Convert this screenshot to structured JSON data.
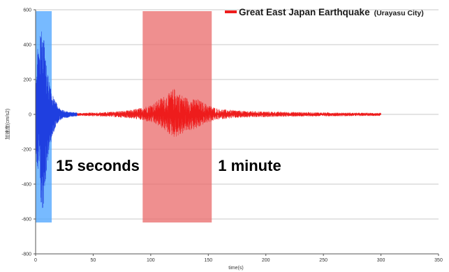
{
  "chart_data": {
    "type": "line",
    "title": "",
    "xlabel": "time(s)",
    "ylabel": "加速度(cm/s2)",
    "xlim": [
      0,
      350
    ],
    "ylim": [
      -800,
      600
    ],
    "x_ticks": [
      0,
      50,
      100,
      150,
      200,
      250,
      300,
      350
    ],
    "y_ticks": [
      600,
      400,
      200,
      0,
      -200,
      -400,
      -600,
      -800
    ],
    "grid": true,
    "legend": {
      "position": "top-right",
      "entries": [
        {
          "label": "Great East Japan Earthquake",
          "sub": "(Urayasu City)",
          "color": "#ee1c1c"
        }
      ]
    },
    "highlights": [
      {
        "x0": 0,
        "x1": 14,
        "color": "#4aa3ff",
        "label": "15 seconds"
      },
      {
        "x0": 93,
        "x1": 153,
        "color": "#ea6a6a",
        "label": "1 minute"
      }
    ],
    "series": [
      {
        "color": "#1f3fe0",
        "envelope": [
          {
            "t": 0,
            "max": 150,
            "min": -200
          },
          {
            "t": 1,
            "max": 220,
            "min": -290
          },
          {
            "t": 2,
            "max": 420,
            "min": -380
          },
          {
            "t": 3,
            "max": 320,
            "min": -300
          },
          {
            "t": 4,
            "max": 460,
            "min": -460
          },
          {
            "t": 5,
            "max": 510,
            "min": -560
          },
          {
            "t": 6,
            "max": 430,
            "min": -590
          },
          {
            "t": 7,
            "max": 470,
            "min": -520
          },
          {
            "t": 8,
            "max": 350,
            "min": -420
          },
          {
            "t": 9,
            "max": 300,
            "min": -360
          },
          {
            "t": 10,
            "max": 260,
            "min": -300
          },
          {
            "t": 11,
            "max": 220,
            "min": -240
          },
          {
            "t": 12,
            "max": 180,
            "min": -200
          },
          {
            "t": 13,
            "max": 150,
            "min": -170
          },
          {
            "t": 14,
            "max": 140,
            "min": -150
          },
          {
            "t": 15,
            "max": 110,
            "min": -120
          },
          {
            "t": 16,
            "max": 90,
            "min": -100
          },
          {
            "t": 17,
            "max": 75,
            "min": -80
          },
          {
            "t": 18,
            "max": 70,
            "min": -60
          },
          {
            "t": 19,
            "max": 50,
            "min": -50
          },
          {
            "t": 20,
            "max": 40,
            "min": -40
          },
          {
            "t": 22,
            "max": 30,
            "min": -30
          },
          {
            "t": 24,
            "max": 24,
            "min": -26
          },
          {
            "t": 26,
            "max": 20,
            "min": -20
          },
          {
            "t": 28,
            "max": 16,
            "min": -18
          },
          {
            "t": 30,
            "max": 14,
            "min": -14
          },
          {
            "t": 33,
            "max": 12,
            "min": -12
          },
          {
            "t": 36,
            "max": 10,
            "min": -10
          }
        ]
      },
      {
        "color": "#ee1c1c",
        "envelope": [
          {
            "t": 8,
            "max": 8,
            "min": -8
          },
          {
            "t": 20,
            "max": 6,
            "min": -6
          },
          {
            "t": 40,
            "max": 8,
            "min": -8
          },
          {
            "t": 60,
            "max": 12,
            "min": -12
          },
          {
            "t": 70,
            "max": 18,
            "min": -16
          },
          {
            "t": 80,
            "max": 22,
            "min": -20
          },
          {
            "t": 90,
            "max": 35,
            "min": -30
          },
          {
            "t": 95,
            "max": 45,
            "min": -38
          },
          {
            "t": 100,
            "max": 55,
            "min": -45
          },
          {
            "t": 105,
            "max": 75,
            "min": -60
          },
          {
            "t": 110,
            "max": 100,
            "min": -80
          },
          {
            "t": 115,
            "max": 115,
            "min": -110
          },
          {
            "t": 120,
            "max": 150,
            "min": -130
          },
          {
            "t": 125,
            "max": 120,
            "min": -125
          },
          {
            "t": 130,
            "max": 100,
            "min": -100
          },
          {
            "t": 135,
            "max": 85,
            "min": -90
          },
          {
            "t": 140,
            "max": 90,
            "min": -85
          },
          {
            "t": 145,
            "max": 70,
            "min": -60
          },
          {
            "t": 150,
            "max": 55,
            "min": -45
          },
          {
            "t": 155,
            "max": 40,
            "min": -35
          },
          {
            "t": 160,
            "max": 30,
            "min": -28
          },
          {
            "t": 170,
            "max": 25,
            "min": -22
          },
          {
            "t": 180,
            "max": 20,
            "min": -18
          },
          {
            "t": 200,
            "max": 16,
            "min": -15
          },
          {
            "t": 220,
            "max": 14,
            "min": -12
          },
          {
            "t": 240,
            "max": 12,
            "min": -11
          },
          {
            "t": 260,
            "max": 10,
            "min": -10
          },
          {
            "t": 280,
            "max": 9,
            "min": -9
          },
          {
            "t": 300,
            "max": 8,
            "min": -8
          }
        ]
      }
    ]
  }
}
